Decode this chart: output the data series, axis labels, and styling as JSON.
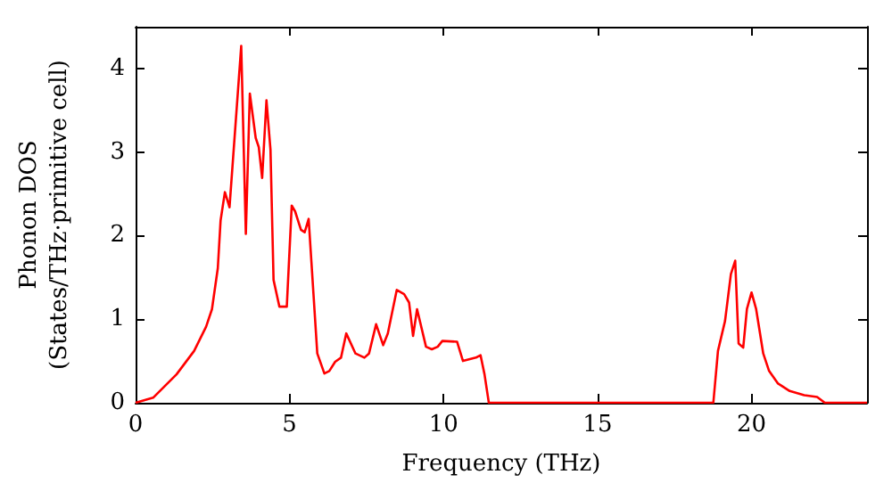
{
  "chart_data": {
    "type": "line",
    "xlabel": "Frequency (THz)",
    "ylabel": "Phonon DOS\n(States/THz·primitive cell)",
    "series": [
      {
        "color": "#ff0000",
        "x": [
          0,
          0.57,
          1.33,
          1.9,
          2.29,
          2.48,
          2.67,
          2.76,
          2.9,
          3.05,
          3.43,
          3.58,
          3.71,
          3.9,
          4.0,
          4.11,
          4.25,
          4.38,
          4.48,
          4.67,
          4.91,
          5.07,
          5.18,
          5.37,
          5.49,
          5.62,
          5.71,
          5.9,
          6.13,
          6.29,
          6.48,
          6.67,
          6.84,
          7.14,
          7.43,
          7.58,
          7.81,
          8.04,
          8.19,
          8.48,
          8.72,
          8.88,
          9.01,
          9.14,
          9.43,
          9.62,
          9.81,
          9.96,
          10.44,
          10.63,
          11.05,
          11.2,
          11.33,
          11.47,
          18.76,
          18.91,
          19.14,
          19.33,
          19.47,
          19.58,
          19.73,
          19.85,
          20.0,
          20.15,
          20.38,
          20.57,
          20.86,
          21.24,
          21.71,
          22.13,
          22.38,
          23.75
        ],
        "values": [
          0,
          0.06,
          0.34,
          0.62,
          0.91,
          1.12,
          1.61,
          2.18,
          2.52,
          2.34,
          4.27,
          2.02,
          3.7,
          3.17,
          3.06,
          2.69,
          3.62,
          3.03,
          1.47,
          1.15,
          1.15,
          2.36,
          2.29,
          2.07,
          2.04,
          2.2,
          1.68,
          0.59,
          0.35,
          0.38,
          0.49,
          0.54,
          0.83,
          0.59,
          0.54,
          0.59,
          0.94,
          0.69,
          0.83,
          1.35,
          1.3,
          1.2,
          0.8,
          1.12,
          0.67,
          0.64,
          0.67,
          0.74,
          0.73,
          0.5,
          0.54,
          0.57,
          0.34,
          0,
          0,
          0.62,
          0.98,
          1.54,
          1.7,
          0.71,
          0.66,
          1.12,
          1.32,
          1.12,
          0.59,
          0.38,
          0.23,
          0.14,
          0.09,
          0.07,
          0,
          0
        ]
      }
    ],
    "xlim": [
      0,
      23.75
    ],
    "xticks": [
      0,
      5,
      10,
      15,
      20
    ],
    "ylim": [
      0,
      4.5
    ],
    "yticks": [
      0,
      1,
      2,
      3,
      4
    ],
    "grid": false,
    "marker": "none",
    "line_style": "solid"
  }
}
